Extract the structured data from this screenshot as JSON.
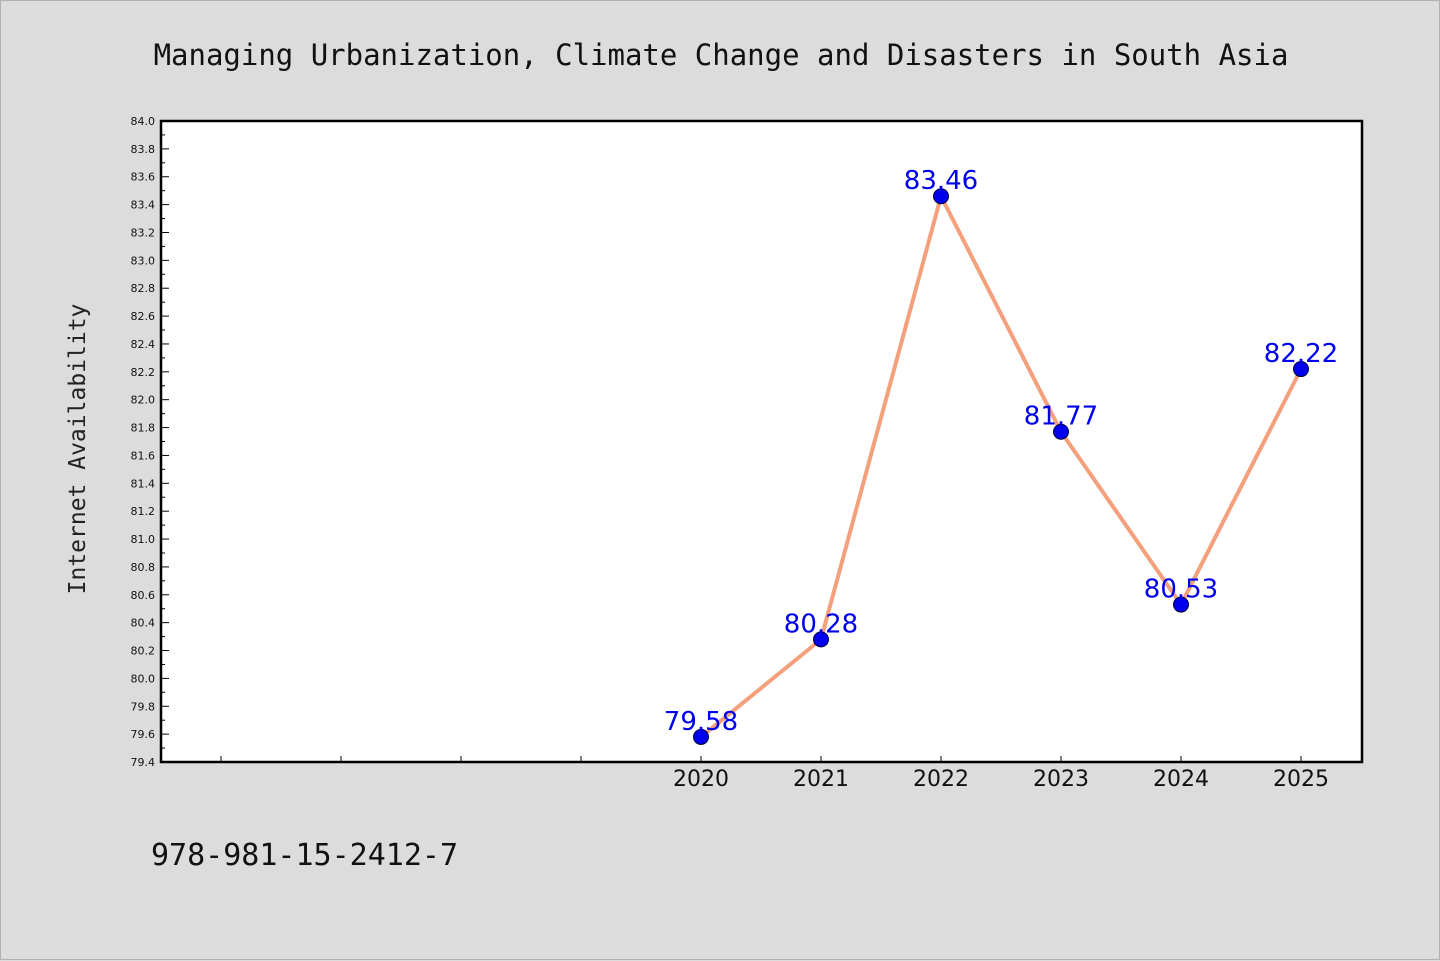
{
  "chart_data": {
    "type": "line",
    "title": "Managing Urbanization, Climate Change and Disasters in South Asia",
    "ylabel": "Internet Availability",
    "xlabel": "",
    "categories": [
      "2020",
      "2021",
      "2022",
      "2023",
      "2024",
      "2025"
    ],
    "series": [
      {
        "values": [
          79.58,
          80.28,
          83.46,
          81.77,
          80.53,
          82.22
        ],
        "data_labels": [
          "79.58",
          "80.28",
          "83.46",
          "81.77",
          "80.53",
          "82.22"
        ]
      }
    ],
    "ylim": [
      79.4,
      84.0
    ],
    "ytick_step": 0.2,
    "legend": "none",
    "grid": false,
    "colors": {
      "line": "#f4a07c",
      "marker": "#0000ee",
      "label": "#0000ee"
    }
  },
  "footer": {
    "isbn": "978-981-15-2412-7"
  }
}
